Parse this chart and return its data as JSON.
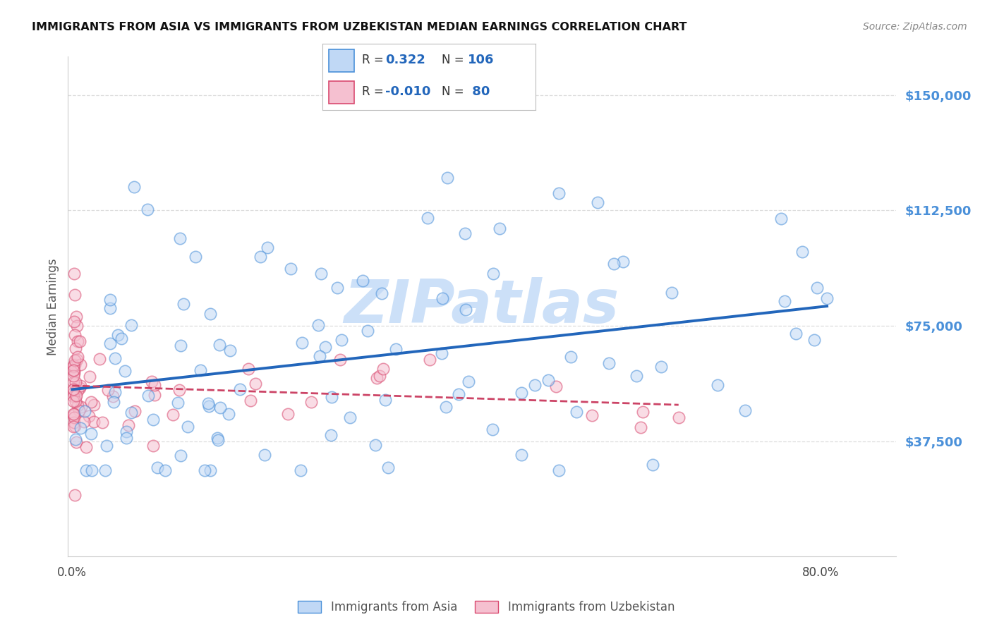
{
  "title": "IMMIGRANTS FROM ASIA VS IMMIGRANTS FROM UZBEKISTAN MEDIAN EARNINGS CORRELATION CHART",
  "source": "Source: ZipAtlas.com",
  "ylabel": "Median Earnings",
  "ytick_labels": [
    "$37,500",
    "$75,000",
    "$112,500",
    "$150,000"
  ],
  "ytick_values": [
    37500,
    75000,
    112500,
    150000
  ],
  "ymin": 0,
  "ymax": 162500,
  "xmin": -0.005,
  "xmax": 0.88,
  "color_asia_fill": "#c0d8f5",
  "color_asia_edge": "#4a90d9",
  "color_uzbek_fill": "#f5c0d0",
  "color_uzbek_edge": "#d94a70",
  "color_trend_asia": "#2266bb",
  "color_trend_uzbek": "#cc4466",
  "watermark": "ZIPatlas",
  "watermark_color": "#cce0f8",
  "grid_color": "#dddddd",
  "title_color": "#111111",
  "source_color": "#888888",
  "right_tick_color": "#4a90d9"
}
